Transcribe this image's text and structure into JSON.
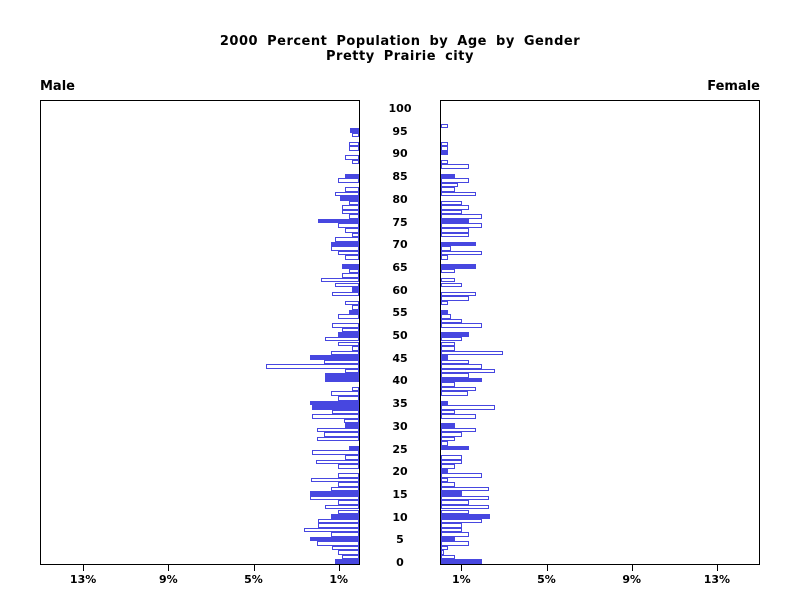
{
  "title": {
    "line1": "2000 Percent Population by Age by Gender",
    "line2": "Pretty Prairie city"
  },
  "panel_labels": {
    "left": "Male",
    "right": "Female"
  },
  "colors": {
    "bar_blue": "#4747e0",
    "frame_black": "#000000",
    "background": "#ffffff"
  },
  "chart_data": {
    "type": "bar",
    "subtype": "population-pyramid",
    "title": "2000 Percent Population by Age by Gender",
    "subtitle": "Pretty Prairie city",
    "left_series_name": "Male",
    "right_series_name": "Female",
    "x_axis_unit": "percent of total population",
    "xlim_pct": [
      0,
      15
    ],
    "x_ticks_pct": [
      1,
      5,
      9,
      13
    ],
    "x_tick_labels_left": [
      "13%",
      "9%",
      "5%",
      "1%"
    ],
    "x_tick_labels_right": [
      "1%",
      "5%",
      "9%",
      "13%"
    ],
    "age_min": 0,
    "age_max": 100,
    "age_tick_step": 5,
    "age_tick_labels": [
      "0",
      "5",
      "10",
      "15",
      "20",
      "25",
      "30",
      "35",
      "40",
      "45",
      "50",
      "55",
      "60",
      "65",
      "70",
      "75",
      "80",
      "85",
      "90",
      "95",
      "100"
    ],
    "fill_rule": "bars for ages divisible by 5 are solid blue; other ages are hollow (white with blue outline)",
    "male_extra_filled_ages": [
      34,
      41
    ],
    "female_extra_filled_ages": [],
    "male_pct_by_age": [
      1.14,
      0.81,
      0.98,
      1.26,
      1.96,
      2.31,
      1.3,
      2.59,
      1.93,
      1.93,
      1.31,
      0.98,
      1.62,
      0.98,
      2.28,
      2.28,
      1.31,
      0.98,
      2.24,
      0.98,
      0,
      0.98,
      2.0,
      0.65,
      2.2,
      0.46,
      0,
      1.96,
      1.63,
      1.96,
      0.65,
      0.72,
      2.2,
      1.26,
      2.2,
      2.28,
      0.98,
      1.3,
      0.33,
      0,
      1.62,
      1.62,
      0.65,
      4.39,
      1.63,
      2.28,
      1.3,
      0.33,
      0.98,
      1.62,
      0.98,
      0.81,
      1.26,
      0,
      0.98,
      0.49,
      0.33,
      0.65,
      0,
      1.26,
      0.33,
      1.14,
      1.79,
      0.81,
      0.49,
      0.81,
      0,
      0.65,
      0.98,
      1.3,
      1.3,
      1.14,
      0.33,
      0.65,
      0.98,
      1.93,
      0.49,
      0.81,
      0.81,
      0.49,
      0.88,
      1.14,
      0.65,
      0,
      0.98,
      0.65,
      0,
      0,
      0.33,
      0.65,
      0,
      0.49,
      0.49,
      0,
      0.33,
      0.42,
      0,
      0,
      0,
      0,
      0
    ],
    "female_pct_by_age": [
      1.93,
      0.65,
      0.16,
      0.33,
      1.3,
      0.65,
      1.3,
      0.98,
      0.98,
      1.93,
      2.28,
      1.3,
      2.24,
      1.3,
      2.24,
      0.98,
      2.24,
      0.65,
      0.33,
      1.93,
      0.33,
      0.65,
      0.98,
      0.98,
      0,
      1.3,
      0.33,
      0.65,
      0.98,
      1.62,
      0.65,
      0,
      1.62,
      0.65,
      2.55,
      0.33,
      0,
      1.26,
      1.62,
      0.65,
      1.93,
      1.3,
      2.55,
      1.93,
      1.3,
      0.33,
      2.9,
      0.65,
      0.65,
      0.98,
      1.3,
      0,
      1.93,
      0.98,
      0.49,
      0.33,
      0,
      0.33,
      1.3,
      1.62,
      0,
      0.98,
      0.65,
      0,
      0.65,
      1.62,
      0,
      0.33,
      1.93,
      0.49,
      1.62,
      0,
      1.3,
      1.3,
      1.93,
      1.3,
      1.93,
      0.98,
      1.3,
      0.98,
      0,
      1.62,
      0.65,
      0.81,
      1.3,
      0.65,
      0,
      1.3,
      0.33,
      0,
      0.33,
      0.33,
      0.33,
      0,
      0,
      0,
      0.33,
      0,
      0,
      0,
      0
    ]
  }
}
